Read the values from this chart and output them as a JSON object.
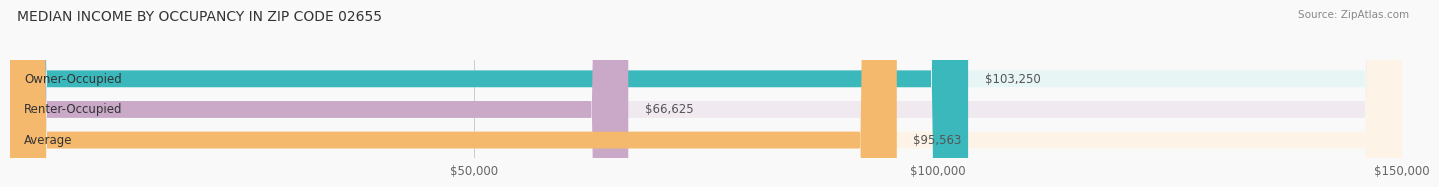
{
  "title": "MEDIAN INCOME BY OCCUPANCY IN ZIP CODE 02655",
  "source": "Source: ZipAtlas.com",
  "categories": [
    "Owner-Occupied",
    "Renter-Occupied",
    "Average"
  ],
  "values": [
    103250,
    66625,
    95563
  ],
  "labels": [
    "$103,250",
    "$66,625",
    "$95,563"
  ],
  "bar_colors": [
    "#3ab8bc",
    "#c9a8c8",
    "#f5b96e"
  ],
  "bar_bg_colors": [
    "#e8f5f5",
    "#f0eaf0",
    "#fdf3e7"
  ],
  "xlim": [
    0,
    150000
  ],
  "xticks": [
    0,
    50000,
    100000,
    150000
  ],
  "xticklabels": [
    "",
    "$50,000",
    "$100,000",
    "$150,000"
  ],
  "title_fontsize": 10,
  "source_fontsize": 7.5,
  "label_fontsize": 8.5,
  "bar_height": 0.55,
  "background_color": "#f9f9f9"
}
